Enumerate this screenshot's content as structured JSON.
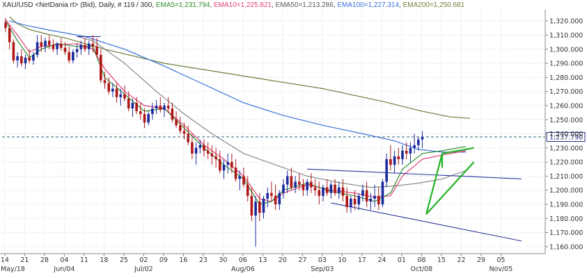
{
  "header": {
    "symbol": "XAU/USD <NetDania rt> (Bid), Daily, # 119 / 300, ",
    "ema5_label": "EMA5=1,231.794",
    "ema10_label": "EMA10=1,225.821",
    "ema50_label": "EMA50=1,213.286",
    "ema100_label": "EMA100=1,227.314",
    "ema200_label": "EMA200=1,250.681"
  },
  "current_price_label": "1,237.790",
  "colors": {
    "ema5": "#2e8b2e",
    "ema10": "#e0407a",
    "ema50": "#8a8a8a",
    "ema100": "#3a6fd8",
    "ema200": "#6b7f3a",
    "candle_up": "#1c2a9e",
    "candle_down": "#b01818",
    "trendline": "#2a3599",
    "triangle": "#22b322",
    "price_line": "#2a5f7a",
    "grid": "#c9d9e4"
  },
  "chart_data": {
    "type": "candlestick",
    "ylim": [
      1155,
      1328
    ],
    "y_ticks": [
      "1,160.000",
      "1,170.000",
      "1,180.000",
      "1,190.000",
      "1,200.000",
      "1,210.000",
      "1,220.000",
      "1,230.000",
      "1,240.000",
      "1,250.000",
      "1,260.000",
      "1,270.000",
      "1,280.000",
      "1,290.000",
      "1,300.000",
      "1,310.000",
      "1,320.000"
    ],
    "x_ticks": [
      "14",
      "21",
      "28",
      "04",
      "11",
      "18",
      "25",
      "02",
      "09",
      "16",
      "23",
      "30",
      "06",
      "13",
      "20",
      "27",
      "03",
      "10",
      "17",
      "24",
      "01",
      "08",
      "15",
      "22",
      "29",
      "05"
    ],
    "x_month_labels": [
      {
        "tick_index": 0,
        "label": "May/18"
      },
      {
        "tick_index": 3,
        "label": "Jun/04"
      },
      {
        "tick_index": 7,
        "label": "Jul/02"
      },
      {
        "tick_index": 12,
        "label": "Aug/06"
      },
      {
        "tick_index": 16,
        "label": "Sep/03"
      },
      {
        "tick_index": 21,
        "label": "Oct/08"
      },
      {
        "tick_index": 25,
        "label": "Nov/05"
      }
    ],
    "current_price": 1237.79,
    "candles": [
      [
        1319,
        1322,
        1312,
        1315
      ],
      [
        1315,
        1317,
        1300,
        1305
      ],
      [
        1305,
        1307,
        1290,
        1292
      ],
      [
        1292,
        1298,
        1287,
        1295
      ],
      [
        1295,
        1300,
        1288,
        1290
      ],
      [
        1290,
        1296,
        1286,
        1294
      ],
      [
        1294,
        1300,
        1290,
        1292
      ],
      [
        1292,
        1298,
        1289,
        1296
      ],
      [
        1296,
        1310,
        1294,
        1305
      ],
      [
        1305,
        1310,
        1298,
        1302
      ],
      [
        1302,
        1308,
        1298,
        1306
      ],
      [
        1306,
        1310,
        1300,
        1303
      ],
      [
        1303,
        1307,
        1298,
        1300
      ],
      [
        1300,
        1305,
        1296,
        1304
      ],
      [
        1304,
        1308,
        1299,
        1301
      ],
      [
        1301,
        1305,
        1296,
        1298
      ],
      [
        1298,
        1302,
        1290,
        1292
      ],
      [
        1292,
        1300,
        1290,
        1298
      ],
      [
        1298,
        1304,
        1294,
        1300
      ],
      [
        1300,
        1306,
        1296,
        1303
      ],
      [
        1303,
        1308,
        1298,
        1300
      ],
      [
        1300,
        1306,
        1296,
        1304
      ],
      [
        1304,
        1310,
        1298,
        1302
      ],
      [
        1302,
        1308,
        1294,
        1296
      ],
      [
        1296,
        1300,
        1276,
        1278
      ],
      [
        1278,
        1284,
        1272,
        1276
      ],
      [
        1276,
        1280,
        1268,
        1270
      ],
      [
        1270,
        1276,
        1266,
        1272
      ],
      [
        1272,
        1276,
        1262,
        1266
      ],
      [
        1266,
        1272,
        1260,
        1268
      ],
      [
        1268,
        1274,
        1263,
        1265
      ],
      [
        1265,
        1270,
        1256,
        1258
      ],
      [
        1258,
        1265,
        1252,
        1262
      ],
      [
        1262,
        1266,
        1254,
        1256
      ],
      [
        1256,
        1262,
        1250,
        1254
      ],
      [
        1254,
        1258,
        1244,
        1248
      ],
      [
        1248,
        1256,
        1246,
        1254
      ],
      [
        1254,
        1262,
        1250,
        1258
      ],
      [
        1258,
        1264,
        1254,
        1260
      ],
      [
        1260,
        1266,
        1255,
        1257
      ],
      [
        1257,
        1262,
        1252,
        1260
      ],
      [
        1260,
        1266,
        1255,
        1258
      ],
      [
        1258,
        1262,
        1248,
        1250
      ],
      [
        1250,
        1256,
        1244,
        1246
      ],
      [
        1246,
        1252,
        1240,
        1242
      ],
      [
        1242,
        1248,
        1236,
        1240
      ],
      [
        1240,
        1246,
        1232,
        1234
      ],
      [
        1234,
        1240,
        1222,
        1226
      ],
      [
        1226,
        1234,
        1218,
        1230
      ],
      [
        1230,
        1236,
        1226,
        1232
      ],
      [
        1232,
        1236,
        1224,
        1228
      ],
      [
        1228,
        1234,
        1222,
        1226
      ],
      [
        1226,
        1232,
        1218,
        1224
      ],
      [
        1224,
        1230,
        1216,
        1222
      ],
      [
        1222,
        1228,
        1212,
        1214
      ],
      [
        1214,
        1222,
        1208,
        1218
      ],
      [
        1218,
        1226,
        1212,
        1220
      ],
      [
        1220,
        1226,
        1212,
        1216
      ],
      [
        1216,
        1222,
        1206,
        1208
      ],
      [
        1208,
        1214,
        1200,
        1210
      ],
      [
        1210,
        1216,
        1202,
        1204
      ],
      [
        1204,
        1210,
        1192,
        1196
      ],
      [
        1196,
        1202,
        1178,
        1182
      ],
      [
        1182,
        1196,
        1160,
        1192
      ],
      [
        1192,
        1198,
        1178,
        1184
      ],
      [
        1184,
        1196,
        1180,
        1194
      ],
      [
        1194,
        1202,
        1188,
        1198
      ],
      [
        1198,
        1206,
        1192,
        1196
      ],
      [
        1196,
        1204,
        1186,
        1190
      ],
      [
        1190,
        1200,
        1186,
        1198
      ],
      [
        1198,
        1208,
        1194,
        1204
      ],
      [
        1204,
        1214,
        1198,
        1210
      ],
      [
        1210,
        1216,
        1200,
        1202
      ],
      [
        1202,
        1210,
        1198,
        1206
      ],
      [
        1206,
        1212,
        1200,
        1204
      ],
      [
        1204,
        1208,
        1196,
        1200
      ],
      [
        1200,
        1208,
        1196,
        1206
      ],
      [
        1206,
        1212,
        1198,
        1202
      ],
      [
        1202,
        1208,
        1196,
        1200
      ],
      [
        1200,
        1206,
        1190,
        1196
      ],
      [
        1196,
        1204,
        1192,
        1202
      ],
      [
        1202,
        1208,
        1196,
        1198
      ],
      [
        1198,
        1206,
        1194,
        1204
      ],
      [
        1204,
        1208,
        1196,
        1198
      ],
      [
        1198,
        1206,
        1194,
        1202
      ],
      [
        1202,
        1208,
        1192,
        1196
      ],
      [
        1196,
        1202,
        1184,
        1188
      ],
      [
        1188,
        1196,
        1184,
        1194
      ],
      [
        1194,
        1200,
        1186,
        1190
      ],
      [
        1190,
        1198,
        1186,
        1196
      ],
      [
        1196,
        1204,
        1192,
        1200
      ],
      [
        1200,
        1206,
        1188,
        1192
      ],
      [
        1192,
        1198,
        1186,
        1194
      ],
      [
        1194,
        1204,
        1188,
        1196
      ],
      [
        1196,
        1202,
        1186,
        1190
      ],
      [
        1190,
        1208,
        1188,
        1206
      ],
      [
        1206,
        1226,
        1202,
        1222
      ],
      [
        1222,
        1232,
        1214,
        1218
      ],
      [
        1218,
        1228,
        1212,
        1224
      ],
      [
        1224,
        1230,
        1218,
        1222
      ],
      [
        1222,
        1232,
        1218,
        1228
      ],
      [
        1228,
        1234,
        1222,
        1226
      ],
      [
        1226,
        1234,
        1220,
        1230
      ],
      [
        1230,
        1240,
        1226,
        1232
      ],
      [
        1232,
        1238,
        1228,
        1236
      ],
      [
        1236,
        1242,
        1230,
        1238
      ]
    ],
    "overlays": [
      {
        "name": "EMA200",
        "color": "#6b7f3a",
        "points": [
          [
            1,
            1323
          ],
          [
            3,
            1318
          ],
          [
            6,
            1314
          ],
          [
            10,
            1311
          ],
          [
            15,
            1308
          ],
          [
            25,
            1300
          ],
          [
            40,
            1290
          ],
          [
            60,
            1281
          ],
          [
            80,
            1272
          ],
          [
            95,
            1263
          ],
          [
            105,
            1256
          ],
          [
            112,
            1252
          ],
          [
            117,
            1251
          ]
        ]
      },
      {
        "name": "EMA100",
        "color": "#3a6fd8",
        "points": [
          [
            1,
            1320
          ],
          [
            5,
            1317
          ],
          [
            12,
            1313
          ],
          [
            20,
            1309
          ],
          [
            30,
            1300
          ],
          [
            40,
            1288
          ],
          [
            50,
            1275
          ],
          [
            60,
            1262
          ],
          [
            70,
            1253
          ],
          [
            80,
            1246
          ],
          [
            90,
            1240
          ],
          [
            98,
            1235
          ],
          [
            104,
            1229
          ],
          [
            110,
            1227
          ],
          [
            116,
            1227
          ]
        ]
      },
      {
        "name": "EMA50",
        "color": "#8a8a8a",
        "points": [
          [
            18,
            1309
          ],
          [
            22,
            1306
          ],
          [
            30,
            1290
          ],
          [
            38,
            1270
          ],
          [
            45,
            1254
          ],
          [
            52,
            1240
          ],
          [
            60,
            1226
          ],
          [
            68,
            1218
          ],
          [
            76,
            1210
          ],
          [
            85,
            1205
          ],
          [
            92,
            1202
          ],
          [
            98,
            1203
          ],
          [
            104,
            1205
          ],
          [
            110,
            1208
          ],
          [
            116,
            1214
          ]
        ]
      },
      {
        "name": "EMA10",
        "color": "#e0407a",
        "points": [
          [
            0,
            1321
          ],
          [
            3,
            1310
          ],
          [
            6,
            1298
          ],
          [
            9,
            1302
          ],
          [
            13,
            1303
          ],
          [
            18,
            1304
          ],
          [
            22,
            1300
          ],
          [
            25,
            1286
          ],
          [
            30,
            1270
          ],
          [
            35,
            1260
          ],
          [
            40,
            1258
          ],
          [
            45,
            1246
          ],
          [
            50,
            1232
          ],
          [
            55,
            1222
          ],
          [
            60,
            1210
          ],
          [
            64,
            1194
          ],
          [
            67,
            1192
          ],
          [
            70,
            1198
          ],
          [
            76,
            1204
          ],
          [
            82,
            1200
          ],
          [
            88,
            1198
          ],
          [
            93,
            1195
          ],
          [
            97,
            1196
          ],
          [
            100,
            1210
          ],
          [
            105,
            1222
          ],
          [
            110,
            1225
          ],
          [
            116,
            1228
          ]
        ]
      },
      {
        "name": "EMA5",
        "color": "#2e8b2e",
        "points": [
          [
            0,
            1320
          ],
          [
            3,
            1306
          ],
          [
            6,
            1294
          ],
          [
            9,
            1300
          ],
          [
            13,
            1304
          ],
          [
            18,
            1302
          ],
          [
            22,
            1302
          ],
          [
            25,
            1280
          ],
          [
            30,
            1268
          ],
          [
            35,
            1256
          ],
          [
            40,
            1258
          ],
          [
            45,
            1244
          ],
          [
            50,
            1230
          ],
          [
            55,
            1218
          ],
          [
            60,
            1208
          ],
          [
            64,
            1190
          ],
          [
            67,
            1192
          ],
          [
            70,
            1200
          ],
          [
            76,
            1205
          ],
          [
            82,
            1199
          ],
          [
            88,
            1196
          ],
          [
            93,
            1192
          ],
          [
            97,
            1198
          ],
          [
            100,
            1215
          ],
          [
            105,
            1226
          ],
          [
            110,
            1228
          ],
          [
            116,
            1231
          ]
        ]
      }
    ],
    "trendlines": [
      {
        "points": [
          [
            76,
            1215
          ],
          [
            130,
            1208
          ]
        ]
      },
      {
        "points": [
          [
            82,
            1191
          ],
          [
            130,
            1164
          ]
        ]
      },
      {
        "points": [
          [
            18,
            1309
          ],
          [
            24,
            1309
          ]
        ]
      }
    ],
    "triangle": [
      {
        "points": [
          [
            106,
            1183
          ],
          [
            110,
            1226
          ]
        ]
      },
      {
        "points": [
          [
            110,
            1226
          ],
          [
            118,
            1230
          ]
        ]
      },
      {
        "points": [
          [
            106,
            1183
          ],
          [
            118,
            1220
          ]
        ]
      },
      {
        "points": [
          [
            110,
            1226
          ],
          [
            110,
            1216
          ]
        ]
      }
    ]
  }
}
